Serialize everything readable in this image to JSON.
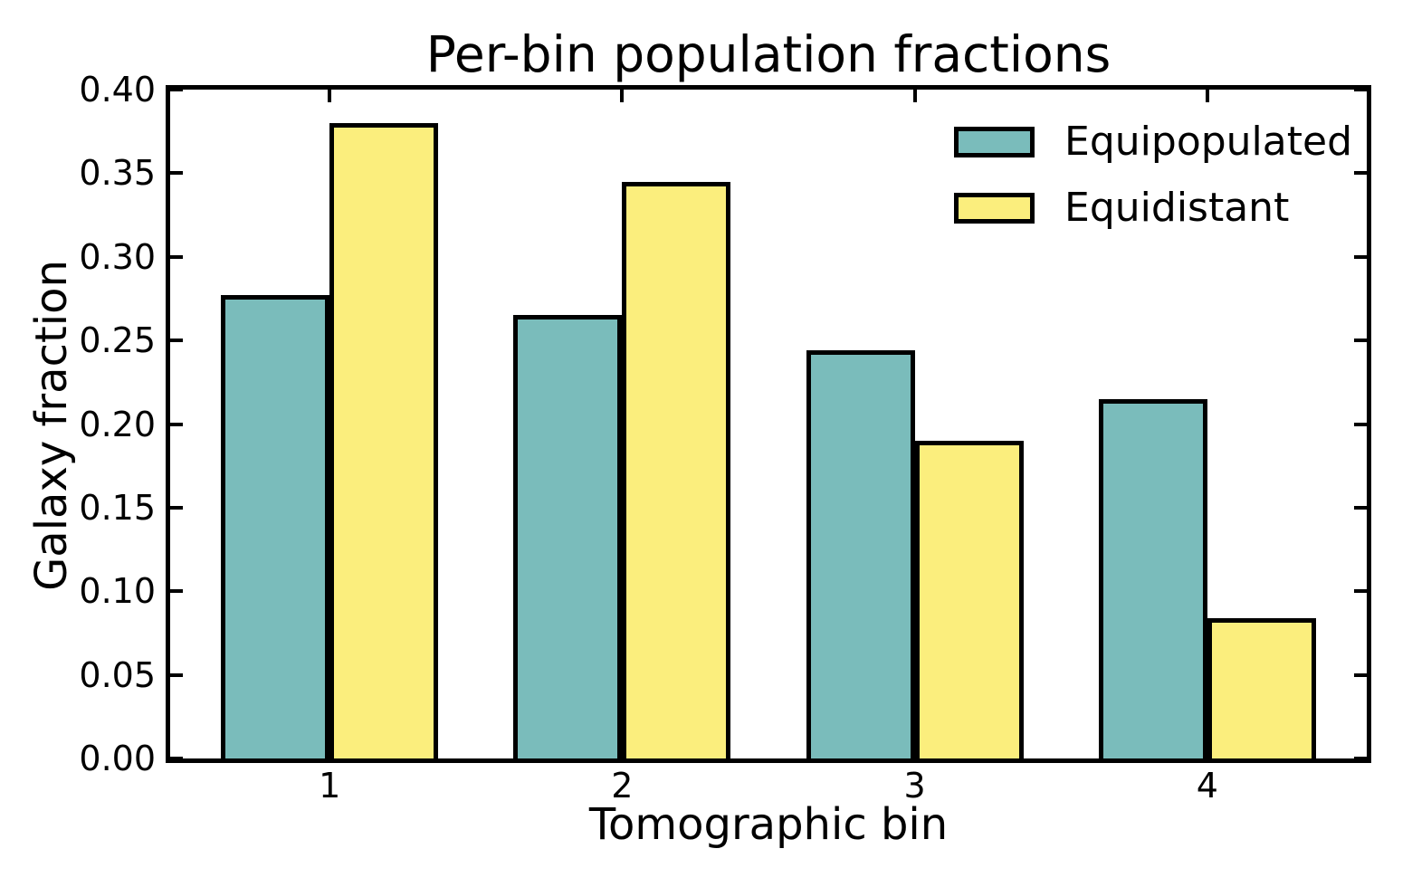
{
  "chart_data": {
    "type": "bar",
    "title": "Per-bin population fractions",
    "xlabel": "Tomographic bin",
    "ylabel": "Galaxy fraction",
    "categories": [
      "1",
      "2",
      "3",
      "4"
    ],
    "series": [
      {
        "name": "Equipopulated",
        "color": "#7ABCBB",
        "values": [
          0.277,
          0.265,
          0.244,
          0.215
        ]
      },
      {
        "name": "Equidistant",
        "color": "#FBEE7D",
        "values": [
          0.38,
          0.345,
          0.19,
          0.084
        ]
      }
    ],
    "ylim": [
      0.0,
      0.4
    ],
    "ytick_step": 0.05,
    "ytick_labels": [
      "0.00",
      "0.05",
      "0.10",
      "0.15",
      "0.20",
      "0.25",
      "0.30",
      "0.35",
      "0.40"
    ],
    "xlim": [
      0.455,
      4.545
    ],
    "edge_color": "#000000",
    "background_color": "#ffffff",
    "grid": false,
    "legend_position": "upper right",
    "tick_direction": "in"
  }
}
